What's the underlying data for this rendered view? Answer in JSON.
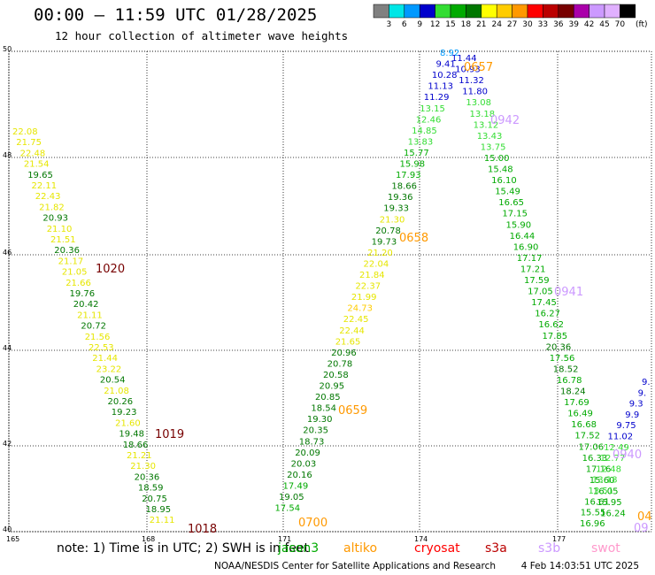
{
  "header": {
    "title": "00:00 — 11:59 UTC 01/28/2025",
    "subtitle": "12 hour collection of altimeter wave heights"
  },
  "color_scale": {
    "unit_label": "(ft)",
    "bins": [
      {
        "label": "3",
        "color": "#808080"
      },
      {
        "label": "6",
        "color": "#00e6e6"
      },
      {
        "label": "9",
        "color": "#0099ff"
      },
      {
        "label": "12",
        "color": "#0000cc"
      },
      {
        "label": "15",
        "color": "#33dd33"
      },
      {
        "label": "18",
        "color": "#00aa00"
      },
      {
        "label": "21",
        "color": "#007700"
      },
      {
        "label": "24",
        "color": "#ffff00"
      },
      {
        "label": "27",
        "color": "#ffcc00"
      },
      {
        "label": "30",
        "color": "#ff9900"
      },
      {
        "label": "33",
        "color": "#ff0000"
      },
      {
        "label": "36",
        "color": "#bb0000"
      },
      {
        "label": "39",
        "color": "#770000"
      },
      {
        "label": "42",
        "color": "#aa00aa"
      },
      {
        "label": "45",
        "color": "#cc99ff"
      },
      {
        "label": "70",
        "color": "#e0b0ff"
      },
      {
        "label": "",
        "color": "#000000"
      }
    ]
  },
  "axes": {
    "y_ticks": [
      "50",
      "48",
      "46",
      "44",
      "42",
      "40"
    ],
    "x_ticks": [
      "165",
      "168",
      "171",
      "174",
      "177"
    ]
  },
  "passes": [
    {
      "label": "1020",
      "color": "#770000"
    },
    {
      "label": "1019",
      "color": "#770000"
    },
    {
      "label": "1018",
      "color": "#770000"
    },
    {
      "label": "0700",
      "color": "#ff9900"
    },
    {
      "label": "0659",
      "color": "#ff9900"
    },
    {
      "label": "0658",
      "color": "#ff9900"
    },
    {
      "label": "0657",
      "color": "#ff9900"
    },
    {
      "label": "0942",
      "color": "#cc99ff"
    },
    {
      "label": "0941",
      "color": "#cc99ff"
    },
    {
      "label": "0940",
      "color": "#cc99ff"
    },
    {
      "label": "04",
      "color": "#ff9900"
    },
    {
      "label": "09",
      "color": "#cc99ff"
    }
  ],
  "tracks": {
    "track_a": [
      "22.08",
      "21.75",
      "22.48",
      "21.54",
      "19.65",
      "22.11",
      "22.43",
      "21.82",
      "20.93",
      "21.10",
      "21.51",
      "20.36",
      "21.17",
      "21.05",
      "21.66",
      "19.76",
      "20.42",
      "21.11",
      "20.72",
      "21.56",
      "22.53",
      "21.44",
      "23.22",
      "20.54",
      "21.08",
      "20.26",
      "19.23",
      "21.60",
      "19.48",
      "18.66",
      "21.21",
      "21.30",
      "20.36",
      "18.59",
      "20.75",
      "18.95",
      "21.11"
    ],
    "track_b": [
      "8.92",
      "11.44",
      "9.41",
      "10.93",
      "10.28",
      "11.32",
      "11.13",
      "11.80",
      "11.29",
      "13.08",
      "13.15",
      "13.18",
      "12.46",
      "13.12",
      "14.85",
      "13.43",
      "13.83",
      "13.75",
      "15.77",
      "15.00",
      "15.98",
      "15.48",
      "17.93",
      "16.10",
      "18.66",
      "15.49",
      "19.36",
      "16.65",
      "19.33",
      "17.15",
      "21.30",
      "15.90",
      "20.78",
      "16.44",
      "19.73",
      "16.90",
      "21.20",
      "17.17",
      "22.04",
      "17.21",
      "21.84",
      "17.59",
      "22.37",
      "17.05",
      "21.99",
      "17.45",
      "24.73",
      "16.27",
      "22.45",
      "16.62",
      "22.44",
      "17.85",
      "21.65",
      "20.36",
      "20.96",
      "17.56",
      "20.78",
      "18.52",
      "20.58",
      "16.78",
      "20.95",
      "18.24",
      "20.85",
      "17.69",
      "18.54",
      "16.49",
      "19.30",
      "16.68",
      "20.35",
      "17.52",
      "18.73",
      "17.06",
      "20.09",
      "16.33",
      "20.03",
      "17.16",
      "20.16",
      "15.60",
      "17.49",
      "16.05",
      "19.05",
      "15.95",
      "17.54",
      "16.24"
    ],
    "track_c": [
      "9.",
      "9.",
      "9.3",
      "9.9",
      "9.75",
      "11.02",
      "12.49",
      "12.77",
      "12.48",
      "13.18",
      "13.51",
      "16.61",
      "15.55",
      "16.96"
    ]
  },
  "note": {
    "text": "note: 1) Time is in UTC; 2) SWH is in feet",
    "satellites": [
      {
        "name": "jason3",
        "color": "#00aa00"
      },
      {
        "name": "altiko",
        "color": "#ff9900"
      },
      {
        "name": "cryosat",
        "color": "#ff0000"
      },
      {
        "name": "s3a",
        "color": "#bb0000"
      },
      {
        "name": "s3b",
        "color": "#cc99ff"
      },
      {
        "name": "swot",
        "color": "#ff99cc"
      }
    ]
  },
  "footer": {
    "credit": "NOAA/NESDIS Center for Satellite Applications and Research",
    "timestamp": "4 Feb 14:03:51 UTC 2025"
  }
}
